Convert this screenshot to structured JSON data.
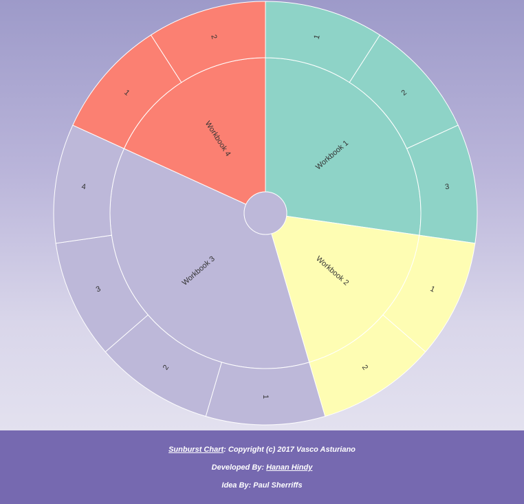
{
  "chart_data": {
    "type": "sunburst",
    "root": {
      "name": "",
      "color": "#bdb8d9"
    },
    "children": [
      {
        "name": "Workbook 1",
        "color": "#8ed3c7",
        "children": [
          {
            "name": "1",
            "value": 1
          },
          {
            "name": "2",
            "value": 1
          },
          {
            "name": "3",
            "value": 1
          }
        ]
      },
      {
        "name": "Workbook 2",
        "color": "#fefdb3",
        "children": [
          {
            "name": "1",
            "value": 1
          },
          {
            "name": "2",
            "value": 1
          }
        ]
      },
      {
        "name": "Workbook 3",
        "color": "#bdb8d9",
        "children": [
          {
            "name": "1",
            "value": 1
          },
          {
            "name": "2",
            "value": 1
          },
          {
            "name": "3",
            "value": 1
          },
          {
            "name": "4",
            "value": 1
          }
        ]
      },
      {
        "name": "Workbook 4",
        "color": "#fb8072",
        "children": [
          {
            "name": "1",
            "value": 1
          },
          {
            "name": "2",
            "value": 1
          }
        ]
      }
    ]
  },
  "footer": {
    "chart_link": "Sunburst Chart",
    "copyright": ": Copyright (c) 2017 Vasco Asturiano",
    "developed_by": "Developed By: ",
    "developer_link": "Hanan Hindy",
    "idea_by": "Idea By: Paul Sherriffs"
  }
}
